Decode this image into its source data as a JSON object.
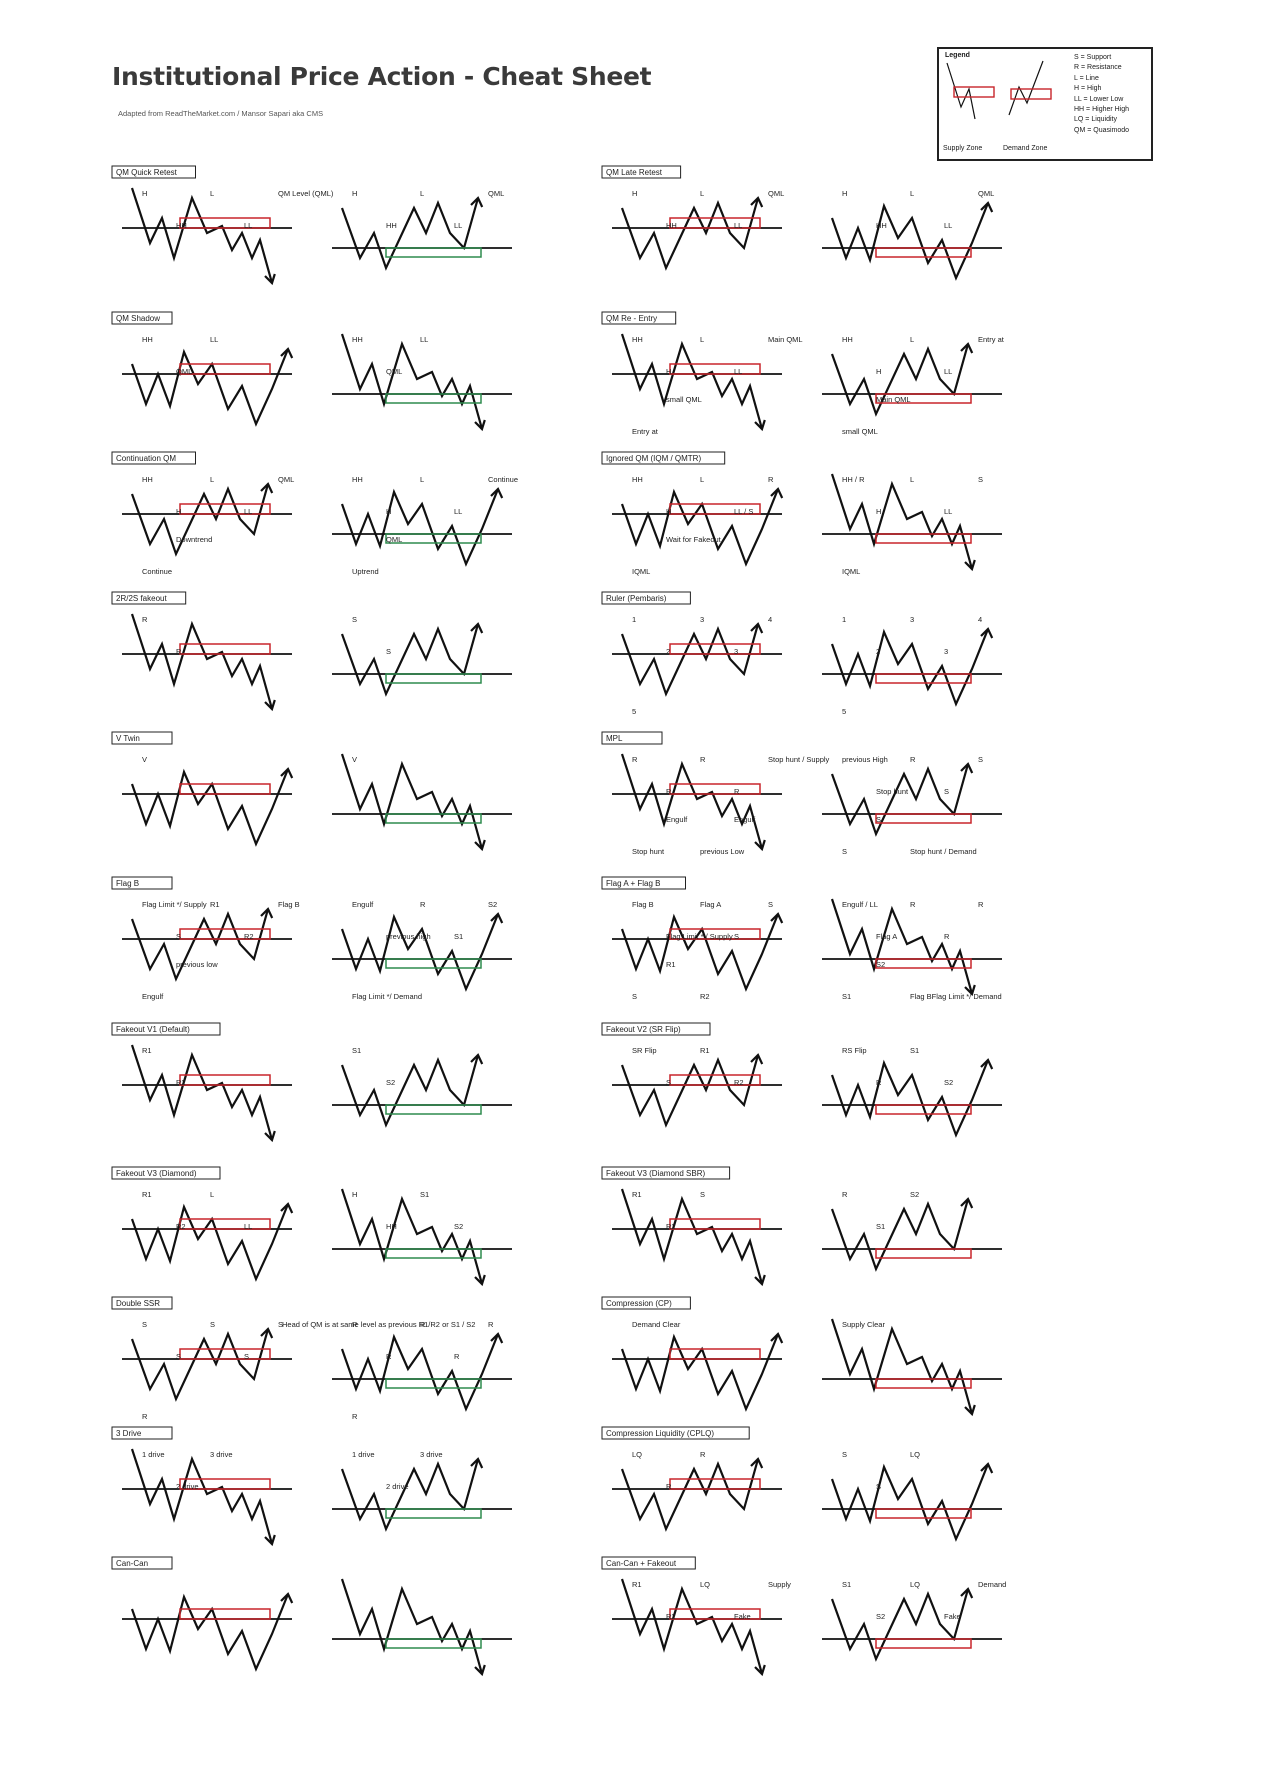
{
  "title": "Institutional Price Action - Cheat Sheet",
  "subtitle": "Adapted from ReadTheMarket.com / Mansor Sapari aka CMS",
  "colors": {
    "supply": "#c8252b",
    "demand": "#2e8b4e",
    "line": "#111111"
  },
  "legend": {
    "title": "Legend",
    "supply_caption": "Supply Zone",
    "demand_caption": "Demand Zone",
    "items": [
      "S = Support",
      "R = Resistance",
      "L = Line",
      "H = High",
      "LL = Lower Low",
      "HH = Higher High",
      "LQ = Liquidity",
      "QM = Quasimodo"
    ]
  },
  "sections": [
    {
      "label": "QM Quick Retest",
      "annotations": [
        [
          "H",
          ""
        ],
        [
          "HH",
          ""
        ],
        [
          "L",
          ""
        ],
        [
          "LL",
          ""
        ],
        [
          "QM Level (QML)",
          ""
        ],
        [
          "H",
          ""
        ],
        [
          "HH",
          ""
        ],
        [
          "L",
          ""
        ],
        [
          "LL",
          ""
        ],
        [
          "QML",
          ""
        ]
      ]
    },
    {
      "label": "QM Late Retest",
      "annotations": [
        [
          "H",
          ""
        ],
        [
          "HH",
          ""
        ],
        [
          "L",
          ""
        ],
        [
          "LL",
          ""
        ],
        [
          "QML",
          ""
        ],
        [
          "H",
          ""
        ],
        [
          "HH",
          ""
        ],
        [
          "L",
          ""
        ],
        [
          "LL",
          ""
        ],
        [
          "QML",
          ""
        ]
      ]
    },
    {
      "label": "QM Shadow",
      "annotations": [
        [
          "HH",
          ""
        ],
        [
          "QML",
          ""
        ],
        [
          "LL",
          ""
        ],
        [
          "HH",
          ""
        ],
        [
          "QML",
          ""
        ],
        [
          "LL",
          ""
        ]
      ]
    },
    {
      "label": "QM Re - Entry",
      "annotations": [
        [
          "HH",
          ""
        ],
        [
          "H",
          ""
        ],
        [
          "L",
          ""
        ],
        [
          "LL",
          ""
        ],
        [
          "Main QML",
          ""
        ],
        [
          "Entry at",
          ""
        ],
        [
          "small QML",
          ""
        ],
        [
          "HH",
          ""
        ],
        [
          "H",
          ""
        ],
        [
          "L",
          ""
        ],
        [
          "LL",
          ""
        ],
        [
          "Entry at",
          ""
        ],
        [
          "small QML",
          ""
        ],
        [
          "Main QML",
          ""
        ]
      ]
    },
    {
      "label": "Continuation QM",
      "annotations": [
        [
          "HH",
          ""
        ],
        [
          "H",
          ""
        ],
        [
          "L",
          ""
        ],
        [
          "LL",
          ""
        ],
        [
          "QML",
          ""
        ],
        [
          "Continue",
          ""
        ],
        [
          "Downtrend",
          ""
        ],
        [
          "HH",
          ""
        ],
        [
          "H",
          ""
        ],
        [
          "L",
          ""
        ],
        [
          "LL",
          ""
        ],
        [
          "Continue",
          ""
        ],
        [
          "Uptrend",
          ""
        ],
        [
          "QML",
          ""
        ]
      ]
    },
    {
      "label": "Ignored QM (IQM / QMTR)",
      "annotations": [
        [
          "HH",
          ""
        ],
        [
          "H",
          ""
        ],
        [
          "L",
          ""
        ],
        [
          "LL / S",
          ""
        ],
        [
          "R",
          ""
        ],
        [
          "IQML",
          ""
        ],
        [
          "Wait for Fakeout",
          ""
        ],
        [
          "HH / R",
          ""
        ],
        [
          "H",
          ""
        ],
        [
          "L",
          ""
        ],
        [
          "LL",
          ""
        ],
        [
          "S",
          ""
        ],
        [
          "IQML",
          ""
        ]
      ]
    },
    {
      "label": "2R/2S fakeout",
      "annotations": [
        [
          "R",
          ""
        ],
        [
          "R",
          ""
        ],
        [
          "S",
          ""
        ],
        [
          "S",
          ""
        ]
      ]
    },
    {
      "label": "Ruler (Pembaris)",
      "annotations": [
        [
          "1",
          ""
        ],
        [
          "2",
          ""
        ],
        [
          "3",
          ""
        ],
        [
          "3",
          ""
        ],
        [
          "4",
          ""
        ],
        [
          "5",
          ""
        ],
        [
          "1",
          ""
        ],
        [
          "2",
          ""
        ],
        [
          "3",
          ""
        ],
        [
          "3",
          ""
        ],
        [
          "4",
          ""
        ],
        [
          "5",
          ""
        ]
      ]
    },
    {
      "label": "V Twin",
      "annotations": [
        [
          "V",
          ""
        ],
        [
          "V",
          ""
        ]
      ]
    },
    {
      "label": "MPL",
      "annotations": [
        [
          "R",
          ""
        ],
        [
          "R",
          ""
        ],
        [
          "R",
          ""
        ],
        [
          "R",
          ""
        ],
        [
          "Stop hunt / Supply",
          ""
        ],
        [
          "Stop hunt",
          ""
        ],
        [
          "Engulf",
          ""
        ],
        [
          "previous Low",
          ""
        ],
        [
          "Engulf",
          ""
        ],
        [
          "previous High",
          ""
        ],
        [
          "Stop hunt",
          ""
        ],
        [
          "R",
          ""
        ],
        [
          "S",
          ""
        ],
        [
          "S",
          ""
        ],
        [
          "S",
          ""
        ],
        [
          "S",
          ""
        ],
        [
          "Stop hunt / Demand",
          ""
        ]
      ]
    },
    {
      "label": "Flag B",
      "annotations": [
        [
          "Flag Limit */ Supply",
          ""
        ],
        [
          "S",
          ""
        ],
        [
          "R1",
          ""
        ],
        [
          "R2",
          ""
        ],
        [
          "Flag B",
          ""
        ],
        [
          "Engulf",
          ""
        ],
        [
          "previous low",
          ""
        ],
        [
          "Engulf",
          ""
        ],
        [
          "previous high",
          ""
        ],
        [
          "R",
          ""
        ],
        [
          "S1",
          ""
        ],
        [
          "S2",
          ""
        ],
        [
          "Flag Limit */ Demand",
          ""
        ]
      ]
    },
    {
      "label": "Flag A + Flag B",
      "annotations": [
        [
          "Flag B",
          ""
        ],
        [
          "Flag Limit * / Supply",
          ""
        ],
        [
          "Flag A",
          ""
        ],
        [
          "S",
          ""
        ],
        [
          "S",
          ""
        ],
        [
          "S",
          ""
        ],
        [
          "R1",
          ""
        ],
        [
          "R2",
          ""
        ],
        [
          "Engulf / LL",
          ""
        ],
        [
          "Flag A",
          ""
        ],
        [
          "R",
          ""
        ],
        [
          "R",
          ""
        ],
        [
          "R",
          ""
        ],
        [
          "S1",
          ""
        ],
        [
          "S2",
          ""
        ],
        [
          "Flag BFlag  Limit */ Demand",
          ""
        ]
      ]
    },
    {
      "label": "Fakeout V1 (Default)",
      "annotations": [
        [
          "R1",
          ""
        ],
        [
          "R2",
          ""
        ],
        [
          "S1",
          ""
        ],
        [
          "S2",
          ""
        ]
      ]
    },
    {
      "label": "Fakeout V2 (SR Flip)",
      "annotations": [
        [
          "SR Flip",
          ""
        ],
        [
          "S",
          ""
        ],
        [
          "R1",
          ""
        ],
        [
          "R2",
          ""
        ],
        [
          "RS Flip",
          ""
        ],
        [
          "R",
          ""
        ],
        [
          "S1",
          ""
        ],
        [
          "S2",
          ""
        ]
      ]
    },
    {
      "label": "Fakeout V3 (Diamond)",
      "annotations": [
        [
          "R1",
          ""
        ],
        [
          "R2",
          ""
        ],
        [
          "L",
          ""
        ],
        [
          "LL",
          ""
        ],
        [
          "H",
          ""
        ],
        [
          "HH",
          ""
        ],
        [
          "S1",
          ""
        ],
        [
          "S2",
          ""
        ]
      ]
    },
    {
      "label": "Fakeout V3 (Diamond SBR)",
      "annotations": [
        [
          "R1",
          ""
        ],
        [
          "R2",
          ""
        ],
        [
          "S",
          ""
        ],
        [
          "R",
          ""
        ],
        [
          "S1",
          ""
        ],
        [
          "S2",
          ""
        ]
      ]
    },
    {
      "label": "Double SSR",
      "annotations": [
        [
          "S",
          ""
        ],
        [
          "S",
          ""
        ],
        [
          "S",
          ""
        ],
        [
          "S",
          ""
        ],
        [
          "S",
          ""
        ],
        [
          "R",
          ""
        ],
        [
          "R",
          ""
        ],
        [
          "R",
          ""
        ],
        [
          "R",
          ""
        ],
        [
          "R",
          ""
        ],
        [
          "R",
          ""
        ],
        [
          "R",
          ""
        ]
      ]
    },
    {
      "label": "Compression (CP)",
      "annotations": [
        [
          "Demand Clear",
          ""
        ],
        [
          "Supply Clear",
          ""
        ]
      ]
    },
    {
      "label": "3 Drive",
      "annotations": [
        [
          "1 drive",
          ""
        ],
        [
          "2 drive",
          ""
        ],
        [
          "3 drive",
          ""
        ],
        [
          "1 drive",
          ""
        ],
        [
          "2 drive",
          ""
        ],
        [
          "3 drive",
          ""
        ]
      ]
    },
    {
      "label": "Compression Liquidity (CPLQ)",
      "annotations": [
        [
          "LQ",
          ""
        ],
        [
          "R",
          ""
        ],
        [
          "R",
          ""
        ],
        [
          "S",
          ""
        ],
        [
          "S",
          ""
        ],
        [
          "LQ",
          ""
        ]
      ]
    },
    {
      "label": "Can-Can",
      "annotations": []
    },
    {
      "label": "Can-Can + Fakeout",
      "annotations": [
        [
          "R1",
          ""
        ],
        [
          "R2",
          ""
        ],
        [
          "LQ",
          ""
        ],
        [
          "Fake",
          ""
        ],
        [
          "Supply",
          ""
        ],
        [
          "S1",
          ""
        ],
        [
          "S2",
          ""
        ],
        [
          "LQ",
          ""
        ],
        [
          "Fake",
          ""
        ],
        [
          "Demand",
          ""
        ]
      ]
    }
  ],
  "footnote": "Head of QM is at same level as previous R1/R2 or S1 / S2"
}
